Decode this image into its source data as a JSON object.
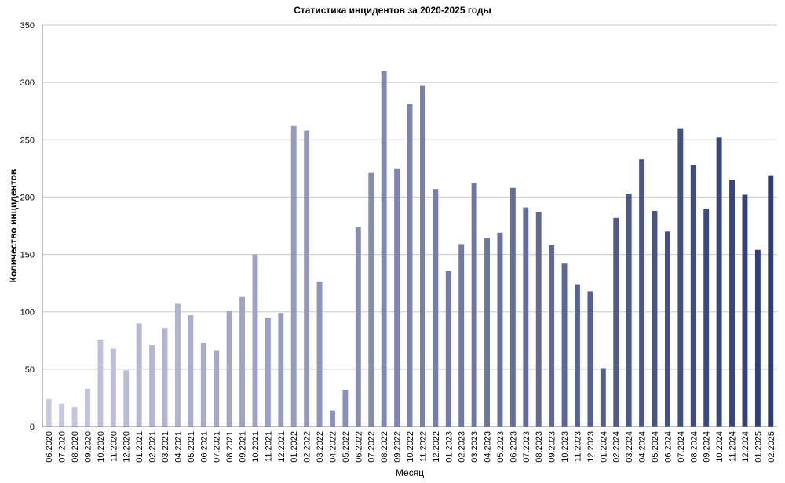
{
  "chart_data": {
    "type": "bar",
    "title": "Статистика инцидентов за 2020-2025 годы",
    "xlabel": "Месяц",
    "ylabel": "Количество инцидентов",
    "ylim": [
      0,
      350
    ],
    "yticks": [
      0,
      50,
      100,
      150,
      200,
      250,
      300,
      350
    ],
    "grid": true,
    "legend": "none",
    "bar_color_start": "#c8cbe6",
    "bar_color_end": "#2d3d78",
    "categories": [
      "06.2020",
      "07.2020",
      "08.2020",
      "09.2020",
      "10.2020",
      "11.2020",
      "12.2020",
      "01.2021",
      "02.2021",
      "03.2021",
      "04.2021",
      "05.2021",
      "06.2021",
      "07.2021",
      "08.2021",
      "09.2021",
      "10.2021",
      "11.2021",
      "12.2021",
      "01.2022",
      "02.2022",
      "03.2022",
      "04.2022",
      "05.2022",
      "06.2022",
      "07.2022",
      "08.2022",
      "09.2022",
      "10.2022",
      "11.2022",
      "12.2022",
      "01.2023",
      "02.2023",
      "03.2023",
      "04.2023",
      "05.2023",
      "06.2023",
      "07.2023",
      "08.2023",
      "09.2023",
      "10.2023",
      "11.2023",
      "12.2023",
      "01.2024",
      "02.2024",
      "03.2024",
      "04.2024",
      "05.2024",
      "06.2024",
      "07.2024",
      "08.2024",
      "09.2024",
      "10.2024",
      "11.2024",
      "12.2024",
      "01.2025",
      "02.2025"
    ],
    "values": [
      24,
      20,
      17,
      33,
      76,
      68,
      49,
      90,
      71,
      86,
      107,
      97,
      73,
      66,
      101,
      113,
      150,
      95,
      99,
      262,
      258,
      126,
      14,
      32,
      174,
      221,
      310,
      225,
      281,
      297,
      207,
      136,
      159,
      212,
      164,
      169,
      208,
      191,
      187,
      158,
      142,
      124,
      118,
      51,
      182,
      203,
      233,
      188,
      170,
      260,
      228,
      190,
      252,
      215,
      202,
      154,
      219
    ]
  }
}
